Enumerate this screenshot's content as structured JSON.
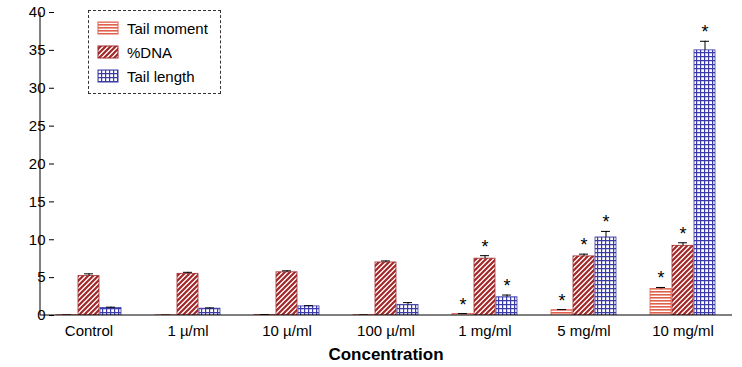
{
  "chart_data": {
    "type": "bar",
    "x_label": "Concentration",
    "categories": [
      "Control",
      "1 µ/ml",
      "10 µ/ml",
      "100 µ/ml",
      "1 mg/ml",
      "5 mg/ml",
      "10 mg/ml"
    ],
    "series": [
      {
        "name": "Tail moment",
        "color": "#e0604c",
        "values": [
          0.05,
          0.03,
          0.08,
          0.05,
          0.2,
          0.7,
          3.5
        ],
        "errors": [
          0.02,
          0.02,
          0.03,
          0.02,
          0.05,
          0.08,
          0.2
        ],
        "annotations": [
          null,
          null,
          null,
          null,
          "*",
          "*",
          "*"
        ]
      },
      {
        "name": "%DNA",
        "color": "#a3282a",
        "values": [
          5.2,
          5.5,
          5.7,
          7.0,
          7.5,
          7.8,
          9.2
        ],
        "errors": [
          0.3,
          0.2,
          0.2,
          0.2,
          0.4,
          0.3,
          0.4
        ],
        "annotations": [
          null,
          null,
          null,
          null,
          "*",
          "*",
          "*"
        ]
      },
      {
        "name": "Tail length",
        "color": "#3a3aa8",
        "values": [
          1.0,
          0.9,
          1.2,
          1.4,
          2.4,
          10.3,
          35.0
        ],
        "errors": [
          0.1,
          0.1,
          0.1,
          0.3,
          0.3,
          0.8,
          1.2
        ],
        "annotations": [
          null,
          null,
          null,
          null,
          "*",
          "*",
          "*"
        ]
      }
    ],
    "ylim": [
      0,
      40
    ],
    "yticks": [
      0,
      5,
      10,
      15,
      20,
      25,
      30,
      35,
      40
    ],
    "grid": false,
    "legend": "upper left"
  }
}
